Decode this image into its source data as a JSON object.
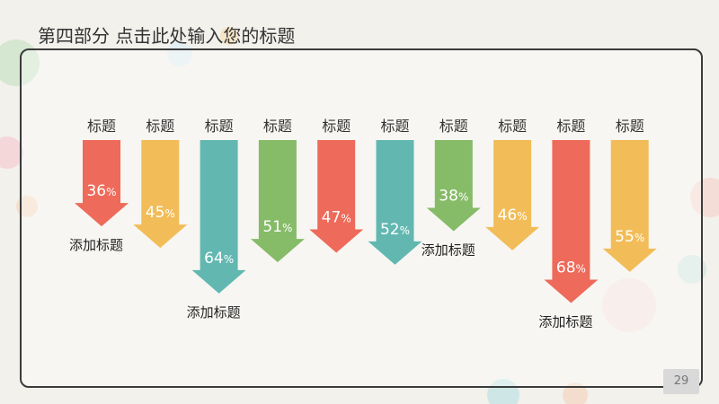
{
  "slide": {
    "title": "第四部分  点击此处输入您的标题",
    "page_number": "29"
  },
  "chart_data": {
    "type": "bar",
    "orientation": "downward-arrows",
    "categories": [
      "标题",
      "标题",
      "标题",
      "标题",
      "标题",
      "标题",
      "标题",
      "标题",
      "标题",
      "标题"
    ],
    "values": [
      36,
      45,
      64,
      51,
      47,
      52,
      38,
      46,
      68,
      55
    ],
    "value_suffix": "%",
    "colors": [
      "#ee6a5a",
      "#f2bd58",
      "#62b8b1",
      "#86bb68",
      "#ee6a5a",
      "#62b8b1",
      "#86bb68",
      "#f2bd58",
      "#ee6a5a",
      "#f2bd58"
    ],
    "annotations": [
      {
        "index": 0,
        "text": "添加标题"
      },
      {
        "index": 2,
        "text": "添加标题"
      },
      {
        "index": 6,
        "text": "添加标题"
      },
      {
        "index": 8,
        "text": "添加标题"
      }
    ]
  }
}
